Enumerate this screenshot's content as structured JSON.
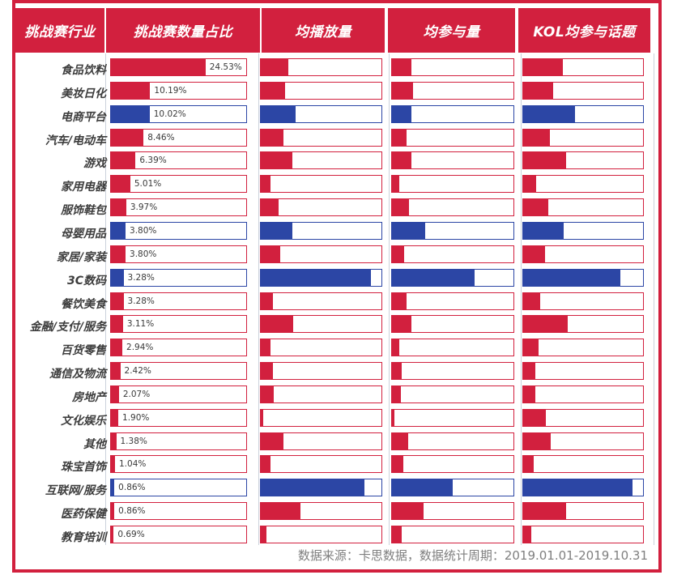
{
  "header": {
    "columns": [
      "挑战赛行业",
      "挑战赛数量占比",
      "均播放量",
      "均参与量",
      "KOL均参与话题"
    ]
  },
  "footer": {
    "text": "数据来源：卡思数据，数据统计周期：2019.01.01-2019.10.31"
  },
  "colors": {
    "red": "#d2203e",
    "blue": "#2c46a5",
    "row_label": "#3d3d3d",
    "footer_text": "#7f7f7f"
  },
  "chart_data": {
    "type": "bar",
    "orientation": "horizontal",
    "columns": [
      "挑战赛行业",
      "挑战赛数量占比",
      "均播放量",
      "均参与量",
      "KOL均参与话题"
    ],
    "share_axis_max_pct": 35,
    "note": "avg_play/avg_engage/kol_topics are unlabeled bar fill fractions (percent of full bar width) estimated from pixels; highlight=true rows are drawn blue",
    "rows": [
      {
        "industry": "食品饮料",
        "share_pct": 24.53,
        "share_label": "24.53%",
        "avg_play": 23,
        "avg_engage": 16,
        "kol_topics": 33,
        "highlight": false
      },
      {
        "industry": "美妆日化",
        "share_pct": 10.19,
        "share_label": "10.19%",
        "avg_play": 20,
        "avg_engage": 17,
        "kol_topics": 25,
        "highlight": false
      },
      {
        "industry": "电商平台",
        "share_pct": 10.02,
        "share_label": "10.02%",
        "avg_play": 29,
        "avg_engage": 16,
        "kol_topics": 43,
        "highlight": true
      },
      {
        "industry": "汽车/电动车",
        "share_pct": 8.46,
        "share_label": "8.46%",
        "avg_play": 19,
        "avg_engage": 12,
        "kol_topics": 22,
        "highlight": false
      },
      {
        "industry": "游戏",
        "share_pct": 6.39,
        "share_label": "6.39%",
        "avg_play": 26,
        "avg_engage": 16,
        "kol_topics": 36,
        "highlight": false
      },
      {
        "industry": "家用电器",
        "share_pct": 5.01,
        "share_label": "5.01%",
        "avg_play": 8,
        "avg_engage": 6,
        "kol_topics": 11,
        "highlight": false
      },
      {
        "industry": "服饰鞋包",
        "share_pct": 3.97,
        "share_label": "3.97%",
        "avg_play": 15,
        "avg_engage": 14,
        "kol_topics": 21,
        "highlight": false
      },
      {
        "industry": "母婴用品",
        "share_pct": 3.8,
        "share_label": "3.80%",
        "avg_play": 26,
        "avg_engage": 27,
        "kol_topics": 34,
        "highlight": true
      },
      {
        "industry": "家居/家装",
        "share_pct": 3.8,
        "share_label": "3.80%",
        "avg_play": 16,
        "avg_engage": 10,
        "kol_topics": 18,
        "highlight": false
      },
      {
        "industry": "3C数码",
        "share_pct": 3.28,
        "share_label": "3.28%",
        "avg_play": 91,
        "avg_engage": 68,
        "kol_topics": 81,
        "highlight": true
      },
      {
        "industry": "餐饮美食",
        "share_pct": 3.28,
        "share_label": "3.28%",
        "avg_play": 10,
        "avg_engage": 12,
        "kol_topics": 14,
        "highlight": false
      },
      {
        "industry": "金融/支付/服务",
        "share_pct": 3.11,
        "share_label": "3.11%",
        "avg_play": 27,
        "avg_engage": 16,
        "kol_topics": 37,
        "highlight": false
      },
      {
        "industry": "百货零售",
        "share_pct": 2.94,
        "share_label": "2.94%",
        "avg_play": 8,
        "avg_engage": 6,
        "kol_topics": 13,
        "highlight": false
      },
      {
        "industry": "通信及物流",
        "share_pct": 2.42,
        "share_label": "2.42%",
        "avg_play": 10,
        "avg_engage": 8,
        "kol_topics": 10,
        "highlight": false
      },
      {
        "industry": "房地产",
        "share_pct": 2.07,
        "share_label": "2.07%",
        "avg_play": 11,
        "avg_engage": 7,
        "kol_topics": 10,
        "highlight": false
      },
      {
        "industry": "文化娱乐",
        "share_pct": 1.9,
        "share_label": "1.90%",
        "avg_play": 2,
        "avg_engage": 2,
        "kol_topics": 19,
        "highlight": false
      },
      {
        "industry": "其他",
        "share_pct": 1.38,
        "share_label": "1.38%",
        "avg_play": 19,
        "avg_engage": 13,
        "kol_topics": 23,
        "highlight": false
      },
      {
        "industry": "珠宝首饰",
        "share_pct": 1.04,
        "share_label": "1.04%",
        "avg_play": 8,
        "avg_engage": 9,
        "kol_topics": 9,
        "highlight": false
      },
      {
        "industry": "互联网/服务",
        "share_pct": 0.86,
        "share_label": "0.86%",
        "avg_play": 86,
        "avg_engage": 50,
        "kol_topics": 91,
        "highlight": true
      },
      {
        "industry": "医药保健",
        "share_pct": 0.86,
        "share_label": "0.86%",
        "avg_play": 33,
        "avg_engage": 26,
        "kol_topics": 36,
        "highlight": false
      },
      {
        "industry": "教育培训",
        "share_pct": 0.69,
        "share_label": "0.69%",
        "avg_play": 5,
        "avg_engage": 8,
        "kol_topics": 7,
        "highlight": false
      }
    ]
  }
}
